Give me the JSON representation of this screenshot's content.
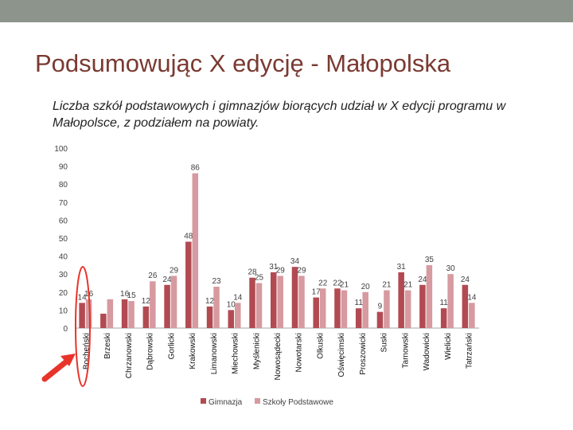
{
  "slide": {
    "title": "Podsumowując X edycję - Małopolska",
    "subtitle": "Liczba szkół podstawowych i gimnazjów biorących udział w X edycji programu w Małopolsce, z podziałem na powiaty."
  },
  "colors": {
    "gimnazja": "#b24a52",
    "podstawowe": "#d69aa0",
    "accent": "#e8332a",
    "axis": "#a6a6a6",
    "text": "#404040",
    "top_band": "#8c948c",
    "title": "#7a3a32"
  },
  "chart_data": {
    "type": "bar",
    "title": "",
    "xlabel": "",
    "ylabel": "",
    "ylim": [
      0,
      100
    ],
    "yticks": [
      0,
      10,
      20,
      30,
      40,
      50,
      60,
      70,
      80,
      90,
      100
    ],
    "grid": false,
    "legend_position": "bottom",
    "categories": [
      "Bocheński",
      "Brzeski",
      "Chrzanowski",
      "Dąbrowski",
      "Gorlicki",
      "Krakowski",
      "Limanowski",
      "Miechowski",
      "Myślenicki",
      "Nowosądecki",
      "Nowotarski",
      "Olkuski",
      "Oświęcimski",
      "Proszowicki",
      "Suski",
      "Tarnowski",
      "Wadowicki",
      "Wielicki",
      "Tatrzański"
    ],
    "series": [
      {
        "name": "Gimnazja",
        "values": [
          14,
          8,
          16,
          12,
          24,
          48,
          12,
          10,
          28,
          31,
          34,
          17,
          22,
          11,
          9,
          31,
          24,
          11,
          24
        ],
        "labels": [
          "14",
          "",
          "16",
          "12",
          "24",
          "48",
          "12",
          "10",
          "28",
          "31",
          "34",
          "17",
          "22",
          "11",
          "9",
          "31",
          "24",
          "11",
          "24"
        ]
      },
      {
        "name": "Szkoły Podstawowe",
        "values": [
          16,
          16,
          15,
          26,
          29,
          86,
          23,
          14,
          25,
          29,
          29,
          22,
          21,
          20,
          21,
          21,
          35,
          30,
          14
        ],
        "labels": [
          "16",
          "",
          "15",
          "26",
          "29",
          "86",
          "23",
          "14",
          "25",
          "29",
          "29",
          "22",
          "21",
          "20",
          "21",
          "21",
          "35",
          "30",
          "14"
        ]
      }
    ]
  },
  "annotation": {
    "type": "arrow",
    "points_to": "Bocheński"
  }
}
